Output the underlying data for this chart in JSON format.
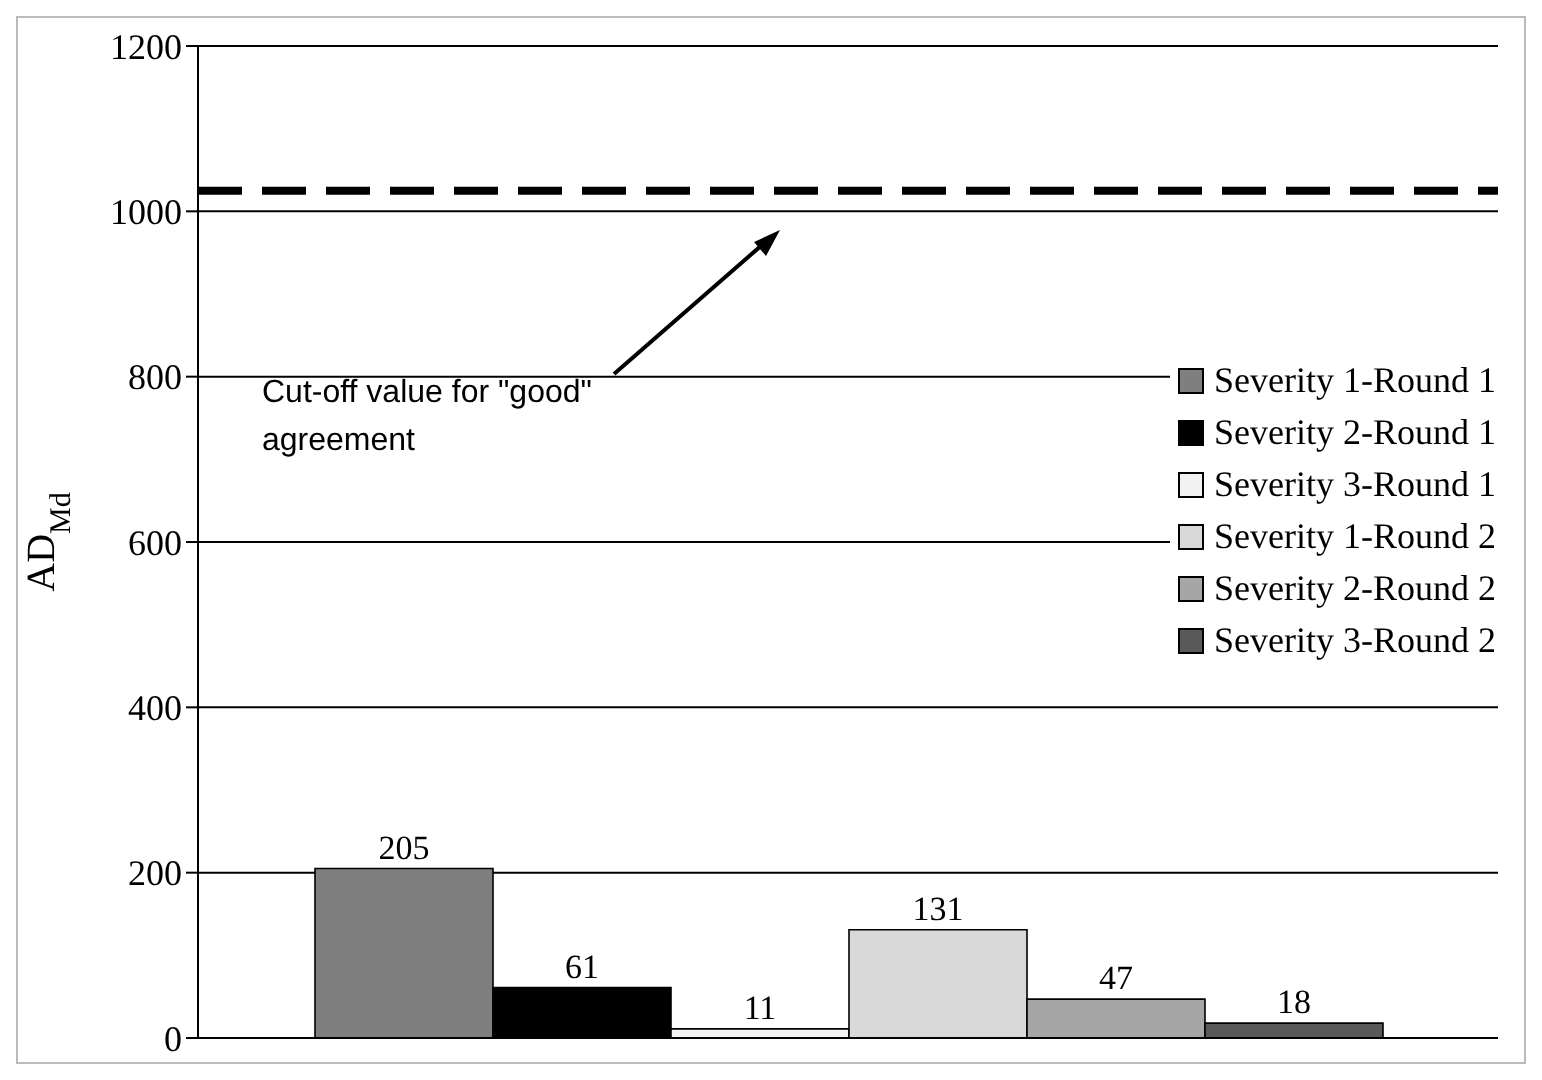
{
  "chart_data": {
    "type": "bar",
    "ylabel": "AD$_{Md}$",
    "categories": [
      null
    ],
    "series": [
      {
        "name": "Severity 1-Round 1",
        "color": "#7f7f7f",
        "values": [
          205
        ]
      },
      {
        "name": "Severity 2-Round 1",
        "color": "#000000",
        "values": [
          61
        ]
      },
      {
        "name": "Severity 3-Round 1",
        "color": "#f2f2f2",
        "values": [
          11
        ]
      },
      {
        "name": "Severity 1-Round 2",
        "color": "#d9d9d9",
        "values": [
          131
        ]
      },
      {
        "name": "Severity 2-Round 2",
        "color": "#a6a6a6",
        "values": [
          47
        ]
      },
      {
        "name": "Severity 3-Round 2",
        "color": "#595959",
        "values": [
          18
        ]
      }
    ],
    "ylim": [
      0,
      1200
    ],
    "yticks": [
      0,
      200,
      400,
      600,
      800,
      1000,
      1200
    ],
    "grid": "y",
    "legend": "right",
    "data_labels": true,
    "annotations": [
      "Cut-off value for \"good\" agreement"
    ],
    "ref_lines": [
      {
        "axis": "y",
        "value": 1025,
        "color": "#000000",
        "line_style": "dashed"
      }
    ]
  }
}
